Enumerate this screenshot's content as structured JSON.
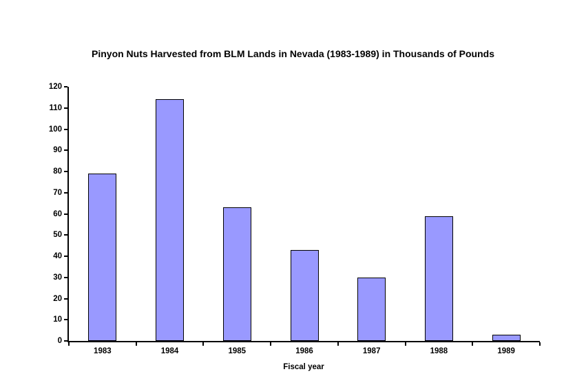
{
  "chart_data": {
    "type": "bar",
    "title": "Pinyon Nuts Harvested from BLM Lands in Nevada (1983-1989) in Thousands of Pounds",
    "xlabel": "Fiscal year",
    "ylabel": "",
    "categories": [
      "1983",
      "1984",
      "1985",
      "1986",
      "1987",
      "1988",
      "1989"
    ],
    "values": [
      79,
      114,
      63,
      43,
      30,
      59,
      3
    ],
    "ylim": [
      0,
      120
    ],
    "ytick_step": 10,
    "grid": false,
    "legend_position": "none",
    "bar_fill_color": "#9999FF",
    "bar_border_color": "#000000",
    "axis_color": "#000000",
    "background_color": "#FFFFFF"
  }
}
